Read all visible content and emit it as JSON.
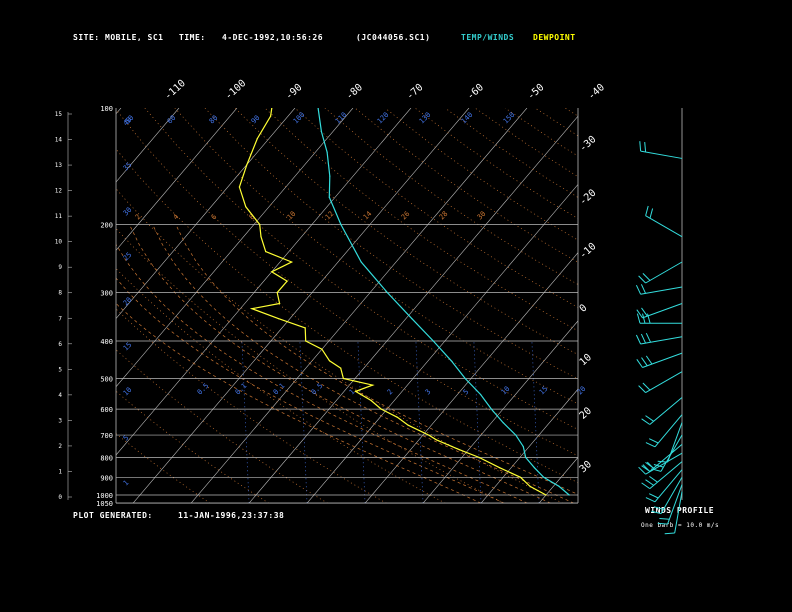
{
  "header": {
    "site_label": "SITE:",
    "site_value": "MOBILE, SC1",
    "time_label": "TIME:",
    "time_value": "4-DEC-1992,10:56:26",
    "file_id": "(JC044056.SC1)",
    "legend_temp": "TEMP/WINDS",
    "legend_dew": "DEWPOINT"
  },
  "footer": {
    "generated_label": "PLOT GENERATED:",
    "generated_value": "11-JAN-1996,23:37:38",
    "winds_title": "WINDS PROFILE",
    "winds_note": "One barb = 10.0 m/s"
  },
  "colors": {
    "temp": "#33dddd",
    "dew": "#ffff33",
    "grid": "#bbbbbb",
    "dry_adiabat": "#cc7733",
    "mixing": "#4477ee",
    "legend_temp": "#33cccc",
    "legend_dew": "#ffff00"
  },
  "chart_data": {
    "type": "line",
    "title": "",
    "xlabel": "",
    "ylabel": "",
    "pressure_ticks": [
      400,
      300,
      200,
      100
    ],
    "top_temp_labels": [
      "-110",
      "-100",
      "-90",
      "-80",
      "-70",
      "-60",
      "-50",
      "-40"
    ],
    "right_temp_labels": [
      "-30",
      "-20",
      "-10",
      "0",
      "10",
      "20",
      "30"
    ],
    "left_height_km": [
      "15",
      "14",
      "13",
      "12",
      "11",
      "10",
      "9",
      "8",
      "7",
      "6",
      "5",
      "4",
      "3",
      "2",
      "1",
      "0"
    ],
    "pressure_levels": [
      {
        "p": 1050,
        "label": "1050"
      },
      {
        "p": 1000,
        "label": "1000"
      },
      {
        "p": 900,
        "label": "900"
      },
      {
        "p": 800,
        "label": "800"
      },
      {
        "p": 700,
        "label": "700"
      },
      {
        "p": 600,
        "label": "600"
      },
      {
        "p": 500,
        "label": "500"
      },
      {
        "p": 400,
        "label": "400"
      },
      {
        "p": 300,
        "label": "300"
      },
      {
        "p": 200,
        "label": "200"
      },
      {
        "p": 100,
        "label": "100"
      }
    ],
    "mixing_ratio_labels": [
      "40",
      "35",
      "30",
      "25",
      "20",
      "15",
      "10",
      "5",
      "1",
      "0.5",
      "0.1",
      "0.1",
      "0.5",
      "1",
      "2",
      "3",
      "5",
      "10",
      "15",
      "20"
    ],
    "theta_labels": [
      "2",
      "4",
      "6",
      "8",
      "10",
      "12",
      "14",
      "26",
      "28",
      "30",
      "50",
      "60",
      "80",
      "90",
      "100",
      "110",
      "120",
      "130",
      "140",
      "150"
    ],
    "series": [
      {
        "name": "TEMP/WINDS",
        "points": [
          {
            "p": 1000,
            "t": 24
          },
          {
            "p": 950,
            "t": 21
          },
          {
            "p": 900,
            "t": 17
          },
          {
            "p": 850,
            "t": 14
          },
          {
            "p": 800,
            "t": 11
          },
          {
            "p": 750,
            "t": 9
          },
          {
            "p": 700,
            "t": 6
          },
          {
            "p": 650,
            "t": 2
          },
          {
            "p": 600,
            "t": -2
          },
          {
            "p": 550,
            "t": -6
          },
          {
            "p": 500,
            "t": -11
          },
          {
            "p": 450,
            "t": -16
          },
          {
            "p": 400,
            "t": -22
          },
          {
            "p": 350,
            "t": -29
          },
          {
            "p": 300,
            "t": -37
          },
          {
            "p": 250,
            "t": -46
          },
          {
            "p": 200,
            "t": -55
          },
          {
            "p": 170,
            "t": -61
          },
          {
            "p": 150,
            "t": -64
          },
          {
            "p": 130,
            "t": -68
          },
          {
            "p": 115,
            "t": -72
          },
          {
            "p": 100,
            "t": -76
          }
        ]
      },
      {
        "name": "DEWPOINT",
        "points": [
          {
            "p": 1000,
            "t": 20
          },
          {
            "p": 950,
            "t": 16
          },
          {
            "p": 900,
            "t": 13
          },
          {
            "p": 850,
            "t": 8
          },
          {
            "p": 800,
            "t": 3
          },
          {
            "p": 760,
            "t": -2
          },
          {
            "p": 720,
            "t": -7
          },
          {
            "p": 700,
            "t": -9
          },
          {
            "p": 660,
            "t": -14
          },
          {
            "p": 630,
            "t": -17
          },
          {
            "p": 600,
            "t": -21
          },
          {
            "p": 570,
            "t": -24
          },
          {
            "p": 540,
            "t": -28
          },
          {
            "p": 520,
            "t": -26
          },
          {
            "p": 500,
            "t": -32
          },
          {
            "p": 470,
            "t": -34
          },
          {
            "p": 450,
            "t": -37
          },
          {
            "p": 420,
            "t": -40
          },
          {
            "p": 400,
            "t": -44
          },
          {
            "p": 370,
            "t": -46
          },
          {
            "p": 350,
            "t": -52
          },
          {
            "p": 330,
            "t": -58
          },
          {
            "p": 320,
            "t": -54
          },
          {
            "p": 300,
            "t": -56
          },
          {
            "p": 280,
            "t": -56
          },
          {
            "p": 265,
            "t": -60
          },
          {
            "p": 250,
            "t": -58
          },
          {
            "p": 235,
            "t": -64
          },
          {
            "p": 215,
            "t": -67
          },
          {
            "p": 200,
            "t": -69
          },
          {
            "p": 180,
            "t": -74
          },
          {
            "p": 160,
            "t": -78
          },
          {
            "p": 140,
            "t": -80
          },
          {
            "p": 120,
            "t": -82
          },
          {
            "p": 105,
            "t": -83
          },
          {
            "p": 100,
            "t": -84
          }
        ]
      }
    ],
    "wind_barbs": [
      {
        "p": 135,
        "dir": 280,
        "spd": 20
      },
      {
        "p": 215,
        "dir": 300,
        "spd": 15
      },
      {
        "p": 250,
        "dir": 240,
        "spd": 15
      },
      {
        "p": 290,
        "dir": 260,
        "spd": 20
      },
      {
        "p": 320,
        "dir": 250,
        "spd": 20
      },
      {
        "p": 360,
        "dir": 270,
        "spd": 25
      },
      {
        "p": 390,
        "dir": 260,
        "spd": 25
      },
      {
        "p": 430,
        "dir": 250,
        "spd": 25
      },
      {
        "p": 480,
        "dir": 240,
        "spd": 20
      },
      {
        "p": 560,
        "dir": 230,
        "spd": 15
      },
      {
        "p": 620,
        "dir": 220,
        "spd": 15
      },
      {
        "p": 650,
        "dir": 200,
        "spd": 10
      },
      {
        "p": 700,
        "dir": 210,
        "spd": 20
      },
      {
        "p": 740,
        "dir": 230,
        "spd": 20
      },
      {
        "p": 780,
        "dir": 240,
        "spd": 25
      },
      {
        "p": 820,
        "dir": 230,
        "spd": 25
      },
      {
        "p": 860,
        "dir": 220,
        "spd": 20
      },
      {
        "p": 900,
        "dir": 210,
        "spd": 20
      },
      {
        "p": 940,
        "dir": 200,
        "spd": 15
      },
      {
        "p": 980,
        "dir": 190,
        "spd": 10
      }
    ]
  }
}
